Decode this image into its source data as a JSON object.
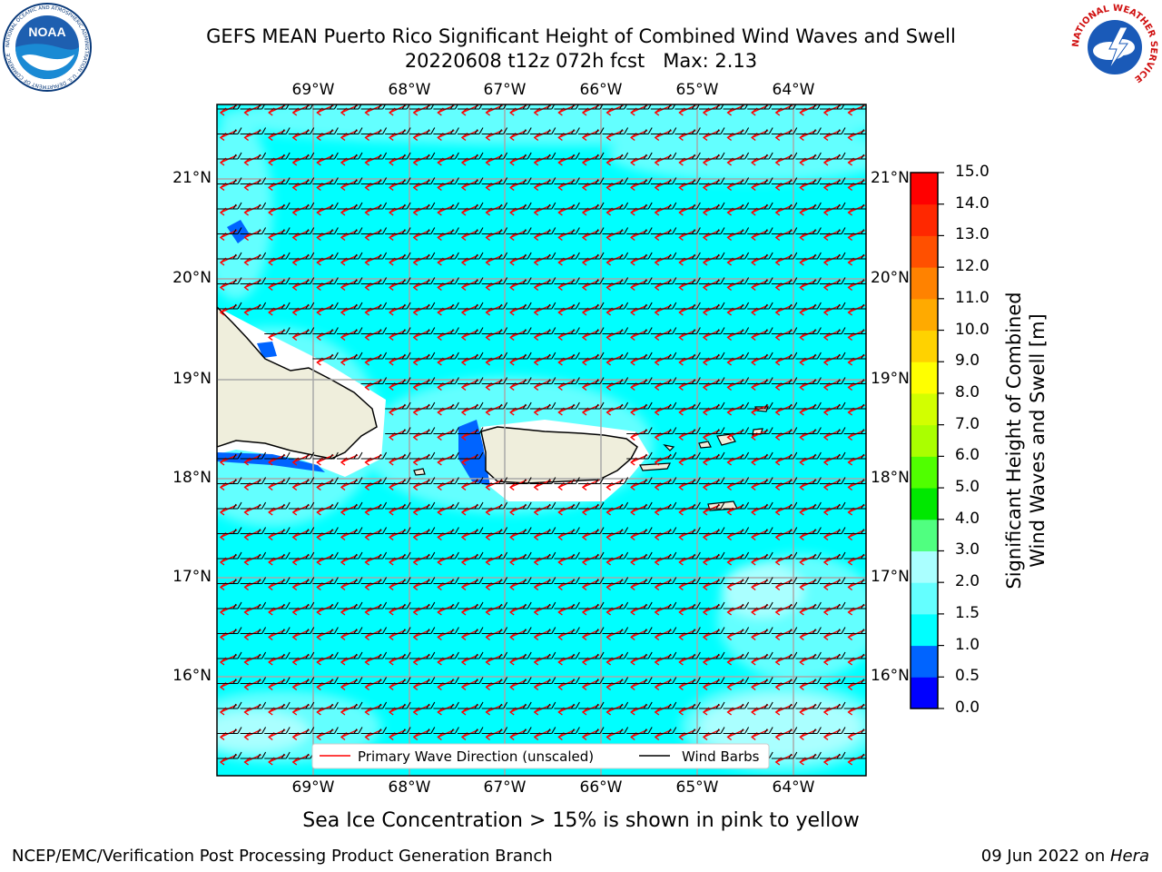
{
  "header": {
    "title_line1": "GEFS MEAN Puerto Rico Significant Height of Combined Wind Waves and Swell",
    "title_line2": "20220608 t12z 072h fcst   Max: 2.13"
  },
  "logos": {
    "noaa_text": "NOAA",
    "noaa_ring_text": "NATIONAL OCEANIC AND ATMOSPHERIC ADMINISTRATION · U.S. DEPARTMENT OF COMMERCE",
    "nws_ring_text": "NATIONAL WEATHER SERVICE"
  },
  "map": {
    "lon_labels": [
      "69°W",
      "68°W",
      "67°W",
      "66°W",
      "65°W",
      "64°W"
    ],
    "lat_labels": [
      "21°N",
      "20°N",
      "19°N",
      "18°N",
      "17°N",
      "16°N"
    ],
    "legend": {
      "wave_label": "Primary Wave Direction (unscaled)",
      "barb_label": "Wind Barbs"
    },
    "colors": {
      "ocean": "#00ffff",
      "land": "#efeedc",
      "wave_arrow": "#ff0000",
      "barb": "#000000"
    }
  },
  "colorbar": {
    "label_line1": "Significant Height of Combined",
    "label_line2": "Wind Waves and Swell [m]",
    "ticks": [
      "15.0",
      "14.0",
      "13.0",
      "12.0",
      "11.0",
      "10.0",
      "9.0",
      "8.0",
      "7.0",
      "6.0",
      "5.0",
      "4.0",
      "3.0",
      "2.0",
      "1.5",
      "1.0",
      "0.5",
      "0.0"
    ],
    "colors_bottom_to_top": [
      "#0000ff",
      "#0064ff",
      "#00ffff",
      "#64ffff",
      "#aaffff",
      "#50ff80",
      "#00e800",
      "#50ff00",
      "#aaff00",
      "#d2ff00",
      "#ffff00",
      "#ffd200",
      "#ffaa00",
      "#ff8200",
      "#ff5000",
      "#ff2800",
      "#ff0000"
    ]
  },
  "footer": {
    "ice_note": "Sea Ice Concentration > 15% is shown in pink to yellow",
    "credit": "NCEP/EMC/Verification Post Processing Product Generation Branch",
    "date_prefix": "09 Jun 2022 on ",
    "date_machine": "Hera"
  }
}
